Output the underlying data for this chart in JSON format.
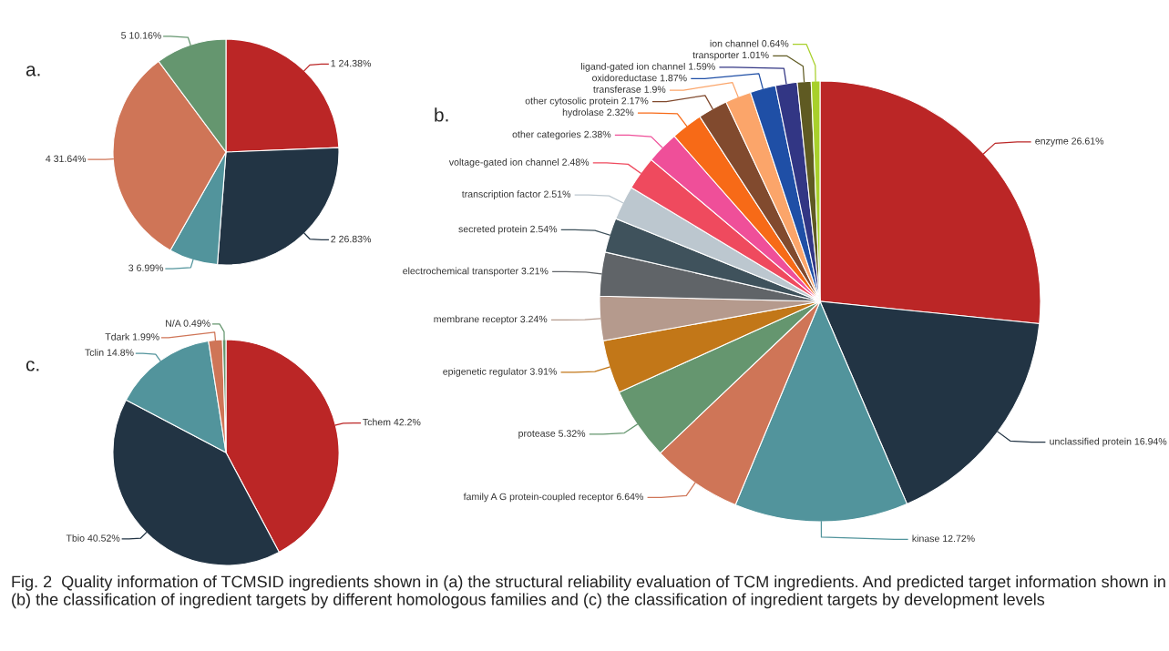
{
  "chart_data": [
    {
      "type": "pie",
      "title": "a.",
      "categories": [
        "1",
        "2",
        "3",
        "4",
        "5"
      ],
      "values": [
        24.38,
        26.83,
        6.99,
        31.64,
        10.16
      ],
      "value_labels": [
        "24.38%",
        "26.83%",
        "6.99%",
        "31.64%",
        "10.16%"
      ],
      "colors": [
        "#bb2626",
        "#223444",
        "#52949c",
        "#cf7557",
        "#65966f"
      ],
      "annotations": [
        "Fig. 2  Quality information of TCMSID ingredients shown in (a) the structural reliability evaluation of TCM ingredients. And predicted target information shown in (b) the classification of ingredient targets by different homologous families and (c) the classification of ingredient targets by development levels"
      ]
    },
    {
      "type": "pie",
      "title": "b.",
      "categories": [
        "enzyme",
        "unclassified protein",
        "kinase",
        "family A G protein-coupled receptor",
        "protease",
        "epigenetic regulator",
        "membrane receptor",
        "electrochemical transporter",
        "secreted protein",
        "transcription factor",
        "voltage-gated ion channel",
        "other categories",
        "hydrolase",
        "other cytosolic protein",
        "transferase",
        "oxidoreductase",
        "ligand-gated ion channel",
        "transporter",
        "ion channel"
      ],
      "values": [
        26.61,
        16.94,
        12.72,
        6.64,
        5.32,
        3.91,
        3.24,
        3.21,
        2.54,
        2.51,
        2.48,
        2.38,
        2.32,
        2.17,
        1.9,
        1.87,
        1.59,
        1.01,
        0.64
      ],
      "value_labels": [
        "26.61%",
        "16.94%",
        "12.72%",
        "6.64%",
        "5.32%",
        "3.91%",
        "3.24%",
        "3.21%",
        "2.54%",
        "2.51%",
        "2.48%",
        "2.38%",
        "2.32%",
        "2.17%",
        "1.9%",
        "1.87%",
        "1.59%",
        "1.01%",
        "0.64%"
      ],
      "colors": [
        "#bb2626",
        "#223444",
        "#52949c",
        "#cf7557",
        "#65966f",
        "#c27718",
        "#b59a8d",
        "#606468",
        "#3f525c",
        "#bcc7cf",
        "#ef4a5e",
        "#ef4f99",
        "#f76a17",
        "#814a2e",
        "#fba56a",
        "#1f4fa6",
        "#323684",
        "#5f5a22",
        "#a8d02b"
      ]
    },
    {
      "type": "pie",
      "title": "c.",
      "categories": [
        "Tchem",
        "Tbio",
        "Tclin",
        "Tdark",
        "N/A"
      ],
      "values": [
        42.2,
        40.52,
        14.8,
        1.99,
        0.49
      ],
      "value_labels": [
        "42.2%",
        "40.52%",
        "14.8%",
        "1.99%",
        "0.49%"
      ],
      "colors": [
        "#bb2626",
        "#223444",
        "#52949c",
        "#cf7557",
        "#65966f"
      ]
    }
  ]
}
